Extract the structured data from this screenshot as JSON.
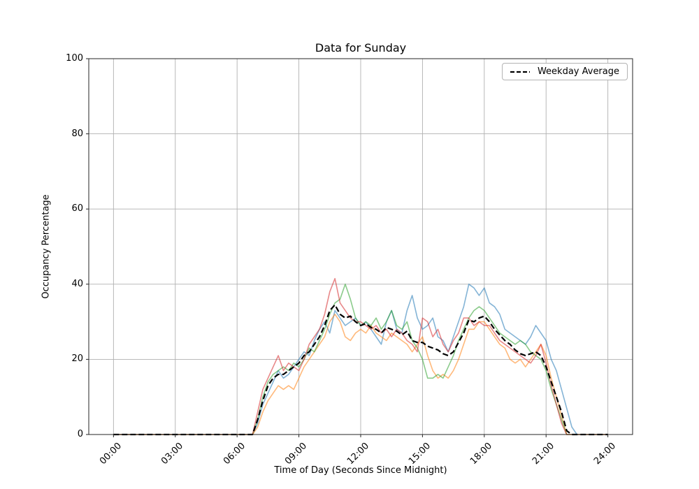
{
  "chart_data": {
    "type": "line",
    "title": "Data for Sunday",
    "xlabel": "Time of Day (Seconds Since Midnight)",
    "ylabel": "Occupancy Percentage",
    "legend_label": "Weekday Average",
    "legend_position": "upper right",
    "grid": true,
    "grid_color": "#b0b0b0",
    "spine_color": "#262626",
    "ylim": [
      0,
      100
    ],
    "xlim_hours": [
      -1.2,
      25.2
    ],
    "x_start_hour": 0,
    "x_step_hours": 0.25,
    "x_ticks": [
      {
        "hour": 0,
        "label": "00:00"
      },
      {
        "hour": 3,
        "label": "03:00"
      },
      {
        "hour": 6,
        "label": "06:00"
      },
      {
        "hour": 9,
        "label": "09:00"
      },
      {
        "hour": 12,
        "label": "12:00"
      },
      {
        "hour": 15,
        "label": "15:00"
      },
      {
        "hour": 18,
        "label": "18:00"
      },
      {
        "hour": 21,
        "label": "21:00"
      },
      {
        "hour": 24,
        "label": "24:00"
      }
    ],
    "y_ticks": [
      {
        "value": 0,
        "label": "0"
      },
      {
        "value": 20,
        "label": "20"
      },
      {
        "value": 40,
        "label": "40"
      },
      {
        "value": 60,
        "label": "60"
      },
      {
        "value": 80,
        "label": "80"
      },
      {
        "value": 100,
        "label": "100"
      }
    ],
    "series": [
      {
        "color_name": "blue",
        "color": "#1f77b4",
        "alpha": 0.55,
        "values": [
          0,
          0,
          0,
          0,
          0,
          0,
          0,
          0,
          0,
          0,
          0,
          0,
          0,
          0,
          0,
          0,
          0,
          0,
          0,
          0,
          0,
          0,
          0,
          0,
          0,
          0,
          0,
          0,
          3,
          8,
          11,
          14,
          17,
          15,
          16,
          18,
          20,
          22,
          21,
          25,
          28,
          30,
          27,
          33,
          31,
          29,
          30,
          31,
          29,
          30,
          28,
          26,
          24,
          30,
          33,
          28,
          27,
          33,
          37,
          31,
          28,
          29,
          31,
          26,
          25,
          22,
          26,
          30,
          34,
          40,
          39,
          37,
          39,
          35,
          34,
          32,
          28,
          27,
          26,
          25,
          24,
          26,
          29,
          27,
          25,
          20,
          17,
          12,
          7,
          2,
          0,
          0,
          0,
          0,
          0,
          0,
          0
        ]
      },
      {
        "color_name": "orange",
        "color": "#ff7f0e",
        "alpha": 0.55,
        "values": [
          0,
          0,
          0,
          0,
          0,
          0,
          0,
          0,
          0,
          0,
          0,
          0,
          0,
          0,
          0,
          0,
          0,
          0,
          0,
          0,
          0,
          0,
          0,
          0,
          0,
          0,
          0,
          0,
          2,
          6,
          9,
          11,
          13,
          12,
          13,
          12,
          15,
          18,
          20,
          22,
          24,
          26,
          30,
          32,
          30,
          26,
          25,
          27,
          28,
          27,
          29,
          27,
          26,
          25,
          27,
          26,
          25,
          24,
          22,
          24,
          26,
          21,
          17,
          15,
          16,
          15,
          17,
          20,
          24,
          28,
          28,
          30,
          30,
          28,
          26,
          24,
          23,
          20,
          19,
          20,
          18,
          20,
          22,
          24,
          21,
          15,
          10,
          5,
          0,
          0,
          0,
          0,
          0,
          0,
          0,
          0,
          0
        ]
      },
      {
        "color_name": "green",
        "color": "#2ca02c",
        "alpha": 0.55,
        "values": [
          0,
          0,
          0,
          0,
          0,
          0,
          0,
          0,
          0,
          0,
          0,
          0,
          0,
          0,
          0,
          0,
          0,
          0,
          0,
          0,
          0,
          0,
          0,
          0,
          0,
          0,
          0,
          0,
          4,
          10,
          14,
          16,
          17,
          18,
          17,
          19,
          18,
          20,
          23,
          22,
          25,
          28,
          32,
          35,
          36,
          40,
          36,
          31,
          29,
          30,
          29,
          31,
          28,
          30,
          33,
          29,
          28,
          30,
          25,
          23,
          20,
          15,
          15,
          16,
          15,
          18,
          21,
          25,
          28,
          31,
          33,
          34,
          33,
          31,
          29,
          27,
          26,
          25,
          24,
          25,
          24,
          22,
          21,
          20,
          17,
          12,
          8,
          4,
          0,
          0,
          0,
          0,
          0,
          0,
          0,
          0,
          0
        ]
      },
      {
        "color_name": "red",
        "color": "#d62728",
        "alpha": 0.55,
        "values": [
          0,
          0,
          0,
          0,
          0,
          0,
          0,
          0,
          0,
          0,
          0,
          0,
          0,
          0,
          0,
          0,
          0,
          0,
          0,
          0,
          0,
          0,
          0,
          0,
          0,
          0,
          0,
          0,
          6,
          12,
          15,
          18,
          21,
          17,
          19,
          18,
          17,
          20,
          24,
          26,
          28,
          32,
          38,
          41.5,
          35,
          33,
          31,
          30,
          30,
          29,
          28,
          29,
          27,
          28,
          26,
          28,
          27,
          25,
          24,
          22,
          31,
          30,
          26,
          28,
          24,
          22,
          25,
          27,
          31,
          31,
          29,
          30,
          29,
          29,
          27,
          25,
          24,
          23,
          22,
          21,
          20,
          19,
          21,
          24,
          19,
          13,
          8,
          3,
          0,
          0,
          0,
          0,
          0,
          0,
          0,
          0,
          0
        ]
      }
    ],
    "average": {
      "name": "Weekday Average",
      "color": "#000000",
      "dash": [
        8,
        4
      ],
      "values": [
        0,
        0,
        0,
        0,
        0,
        0,
        0,
        0,
        0,
        0,
        0,
        0,
        0,
        0,
        0,
        0,
        0,
        0,
        0,
        0,
        0,
        0,
        0,
        0,
        0,
        0,
        0,
        0,
        4,
        9,
        13,
        15,
        16,
        16,
        17,
        18,
        19,
        21,
        22,
        24,
        26,
        29,
        33,
        34.5,
        32,
        31,
        31.5,
        30,
        29,
        29.5,
        28.5,
        28,
        27,
        28.5,
        28,
        27.5,
        26.5,
        27.5,
        25,
        24.5,
        24.5,
        23.5,
        23,
        22.5,
        21.5,
        21,
        22,
        24.5,
        27,
        30.5,
        30,
        31,
        31.5,
        30,
        28,
        26.5,
        25,
        24,
        22.5,
        21.5,
        21,
        21.5,
        22,
        21,
        18,
        14,
        10,
        6,
        1,
        0,
        0,
        0,
        0,
        0,
        0,
        0,
        0
      ]
    }
  }
}
